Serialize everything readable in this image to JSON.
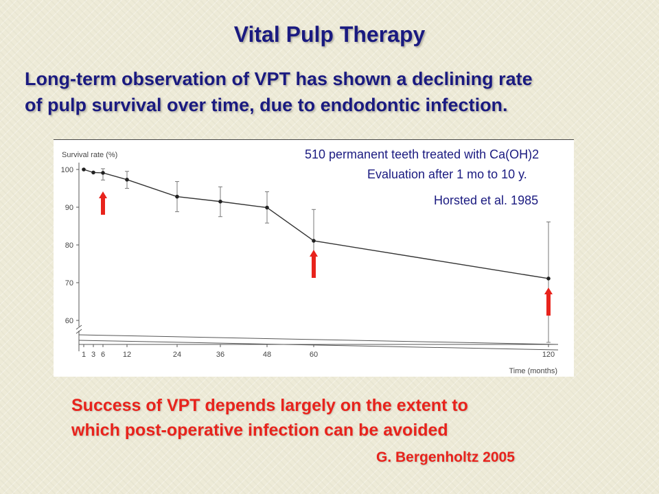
{
  "slide": {
    "title": "Vital Pulp Therapy",
    "subtitle_line1": "Long-term observation of  VPT  has shown a declining rate",
    "subtitle_line2": "of pulp survival over time, due to endodontic infection.",
    "conclusion_line1": "Success of VPT depends largely on the extent to",
    "conclusion_line2": "which post-operative infection can be avoided",
    "citation": "G. Bergenholtz 2005"
  },
  "colors": {
    "title": "#1a1a80",
    "conclusion": "#e8231c",
    "arrow": "#e8231c",
    "background": "#eeebd8"
  },
  "chart_data": {
    "type": "line",
    "ylabel": "Survival rate (%)",
    "xlabel": "Time (months)",
    "annotation_line1": "510 permanent teeth treated with Ca(OH)2",
    "annotation_line2": "Evaluation after 1 mo to 10 y.",
    "annotation_line3": "Horsted et al. 1985",
    "x_ticks": [
      1,
      3,
      6,
      12,
      24,
      36,
      48,
      60,
      120
    ],
    "y_ticks": [
      60,
      70,
      80,
      90,
      100
    ],
    "ylim": [
      58,
      100
    ],
    "axis_break": true,
    "grid": false,
    "series": [
      {
        "x": [
          1,
          3,
          6,
          12,
          24,
          36,
          48,
          60,
          120
        ],
        "y": [
          100,
          99.2,
          99.1,
          97.3,
          92.8,
          91.5,
          89.9,
          81.1,
          71.1
        ],
        "error_low": [
          null,
          null,
          97.2,
          95.0,
          88.8,
          87.5,
          85.8,
          72.9,
          55.8
        ],
        "error_high": [
          null,
          null,
          100.2,
          99.5,
          96.8,
          95.4,
          94.1,
          89.4,
          86.1
        ]
      }
    ],
    "arrows_at_x": [
      6,
      60,
      120
    ]
  }
}
